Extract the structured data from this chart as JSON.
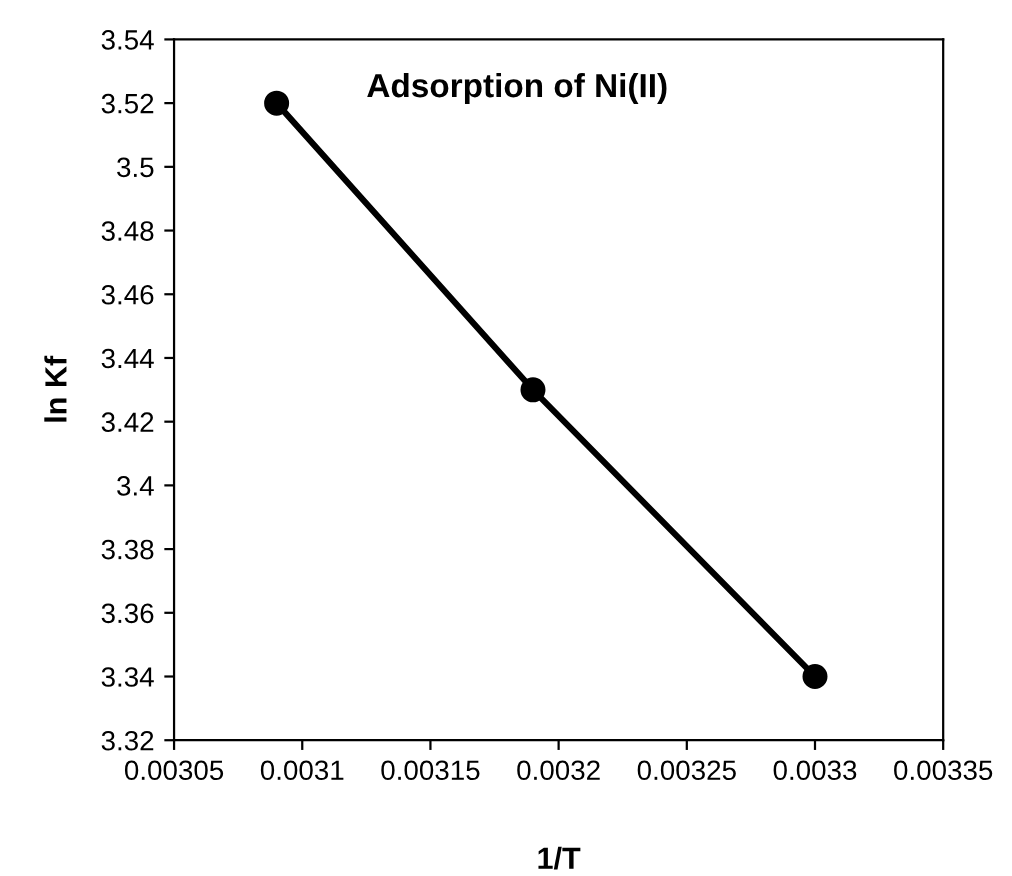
{
  "chart_data": {
    "type": "line",
    "title": "Adsorption of Ni(II)",
    "xlabel": "1/T",
    "ylabel": "ln Kf",
    "x": [
      0.00309,
      0.00319,
      0.0033
    ],
    "series": [
      {
        "color": "#000000",
        "values": [
          3.52,
          3.43,
          3.34
        ]
      }
    ],
    "xlim": [
      0.00305,
      0.00335
    ],
    "xticks": [
      0.00305,
      0.0031,
      0.00315,
      0.0032,
      0.00325,
      0.0033,
      0.00335
    ],
    "ylim": [
      3.32,
      3.54
    ],
    "yticks": [
      3.32,
      3.34,
      3.36,
      3.38,
      3.4,
      3.42,
      3.44,
      3.46,
      3.48,
      3.5,
      3.52,
      3.54
    ],
    "marker": "circle",
    "line_style": "solid",
    "grid": false,
    "legend": false
  }
}
